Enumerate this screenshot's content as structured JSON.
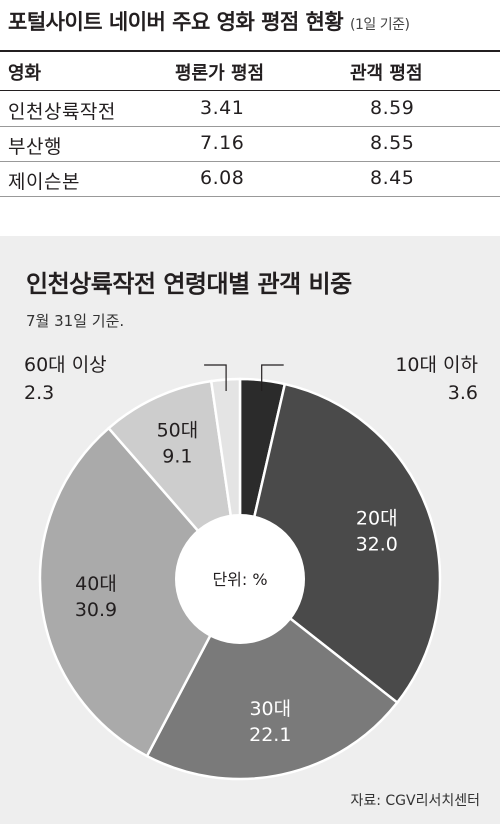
{
  "table": {
    "title": "포털사이트 네이버 주요 영화 평점 현황",
    "subtitle": "(1일 기준)",
    "headers": [
      "영화",
      "평론가 평점",
      "관객 평점"
    ],
    "rows": [
      [
        "인천상륙작전",
        "3.41",
        "8.59"
      ],
      [
        "부산행",
        "7.16",
        "8.55"
      ],
      [
        "제이슨본",
        "6.08",
        "8.45"
      ]
    ]
  },
  "chart_data": {
    "type": "pie",
    "title": "인천상륙작전 연령대별 관객 비중",
    "subtitle": "7월 31일 기준.",
    "center_label": "단위: %",
    "source": "자료: CGV리서치센터",
    "start": "12 o'clock",
    "direction": "clockwise",
    "slices": [
      {
        "label": "10대 이하",
        "value": 3.6,
        "value_text": "3.6",
        "color": "#2b2b2b",
        "label_color": "#231f20",
        "callout": true
      },
      {
        "label": "20대",
        "value": 32.0,
        "value_text": "32.0",
        "color": "#4a4a4a",
        "label_color": "#ffffff",
        "callout": false
      },
      {
        "label": "30대",
        "value": 22.1,
        "value_text": "22.1",
        "color": "#7a7a7a",
        "label_color": "#ffffff",
        "callout": false
      },
      {
        "label": "40대",
        "value": 30.9,
        "value_text": "30.9",
        "color": "#aaaaaa",
        "label_color": "#231f20",
        "callout": false
      },
      {
        "label": "50대",
        "value": 9.1,
        "value_text": "9.1",
        "color": "#cdcdcd",
        "label_color": "#231f20",
        "callout": false
      },
      {
        "label": "60대 이상",
        "value": 2.3,
        "value_text": "2.3",
        "color": "#e4e4e4",
        "label_color": "#231f20",
        "callout": true
      }
    ]
  }
}
